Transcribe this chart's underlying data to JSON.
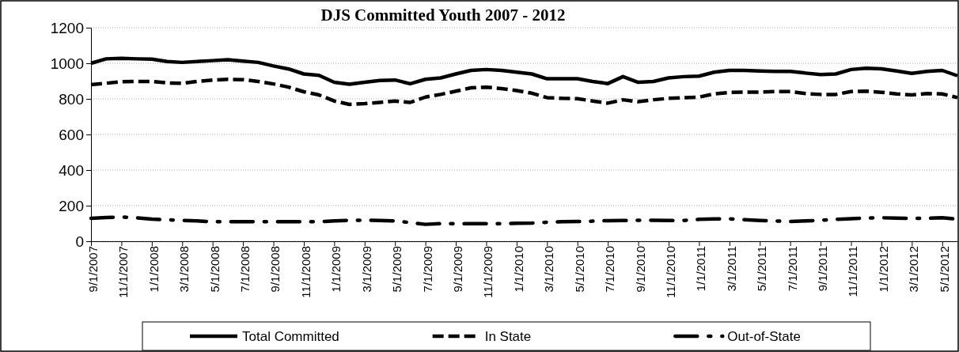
{
  "chart_data": {
    "type": "line",
    "title": "DJS Committed Youth 2007 - 2012",
    "categories": [
      "9/1/2007",
      null,
      "11/1/2007",
      null,
      "1/1/2008",
      null,
      "3/1/2008",
      null,
      "5/1/2008",
      null,
      "7/1/2008",
      null,
      "9/1/2008",
      null,
      "11/1/2008",
      null,
      "1/1/2009",
      null,
      "3/1/2009",
      null,
      "5/1/2009",
      null,
      "7/1/2009",
      null,
      "9/1/2009",
      null,
      "11/1/2009",
      null,
      "1/1/2010",
      null,
      "3/1/2010",
      null,
      "5/1/2010",
      null,
      "7/1/2010",
      null,
      "9/1/2010",
      null,
      "11/1/2010",
      null,
      "1/1/2011",
      null,
      "3/1/2011",
      null,
      "5/1/2011",
      null,
      "7/1/2011",
      null,
      "9/1/2011",
      null,
      "11/1/2011",
      null,
      "1/1/2012",
      null,
      "3/1/2012",
      null,
      "5/1/2012",
      null
    ],
    "series": [
      {
        "name": "Total Committed",
        "color": "#000000",
        "line_style": "solid",
        "values": [
          1000,
          1025,
          1028,
          1025,
          1023,
          1010,
          1005,
          1010,
          1015,
          1020,
          1012,
          1005,
          985,
          968,
          940,
          932,
          893,
          882,
          893,
          903,
          906,
          885,
          910,
          918,
          940,
          960,
          965,
          960,
          950,
          940,
          913,
          913,
          913,
          898,
          886,
          925,
          893,
          898,
          918,
          925,
          928,
          950,
          960,
          960,
          957,
          954,
          954,
          945,
          937,
          940,
          965,
          972,
          969,
          957,
          943,
          954,
          960,
          930
        ]
      },
      {
        "name": "In State",
        "color": "#000000",
        "line_style": "dashed",
        "values": [
          880,
          888,
          896,
          898,
          898,
          890,
          887,
          898,
          906,
          910,
          908,
          898,
          884,
          866,
          840,
          822,
          788,
          769,
          773,
          780,
          788,
          780,
          810,
          825,
          843,
          862,
          866,
          858,
          847,
          832,
          807,
          803,
          801,
          788,
          776,
          795,
          784,
          795,
          803,
          807,
          810,
          828,
          836,
          838,
          838,
          841,
          841,
          830,
          825,
          825,
          841,
          843,
          837,
          828,
          822,
          830,
          828,
          807
        ]
      },
      {
        "name": "Out-of-State",
        "color": "#000000",
        "line_style": "dashdot",
        "values": [
          129,
          133,
          136,
          132,
          124,
          121,
          117,
          114,
          110,
          110,
          110,
          110,
          110,
          110,
          110,
          110,
          114,
          118,
          118,
          117,
          114,
          105,
          95,
          99,
          99,
          99,
          99,
          99,
          101,
          102,
          107,
          110,
          111,
          113,
          116,
          117,
          118,
          118,
          117,
          117,
          123,
          126,
          126,
          121,
          117,
          114,
          111,
          114,
          118,
          123,
          127,
          130,
          132,
          130,
          129,
          129,
          132,
          124
        ]
      }
    ],
    "ylim": [
      0,
      1200
    ],
    "yticks": [
      0,
      200,
      400,
      600,
      800,
      1000,
      1200
    ],
    "grid": "y",
    "legend": "bottom",
    "marker": "none"
  }
}
